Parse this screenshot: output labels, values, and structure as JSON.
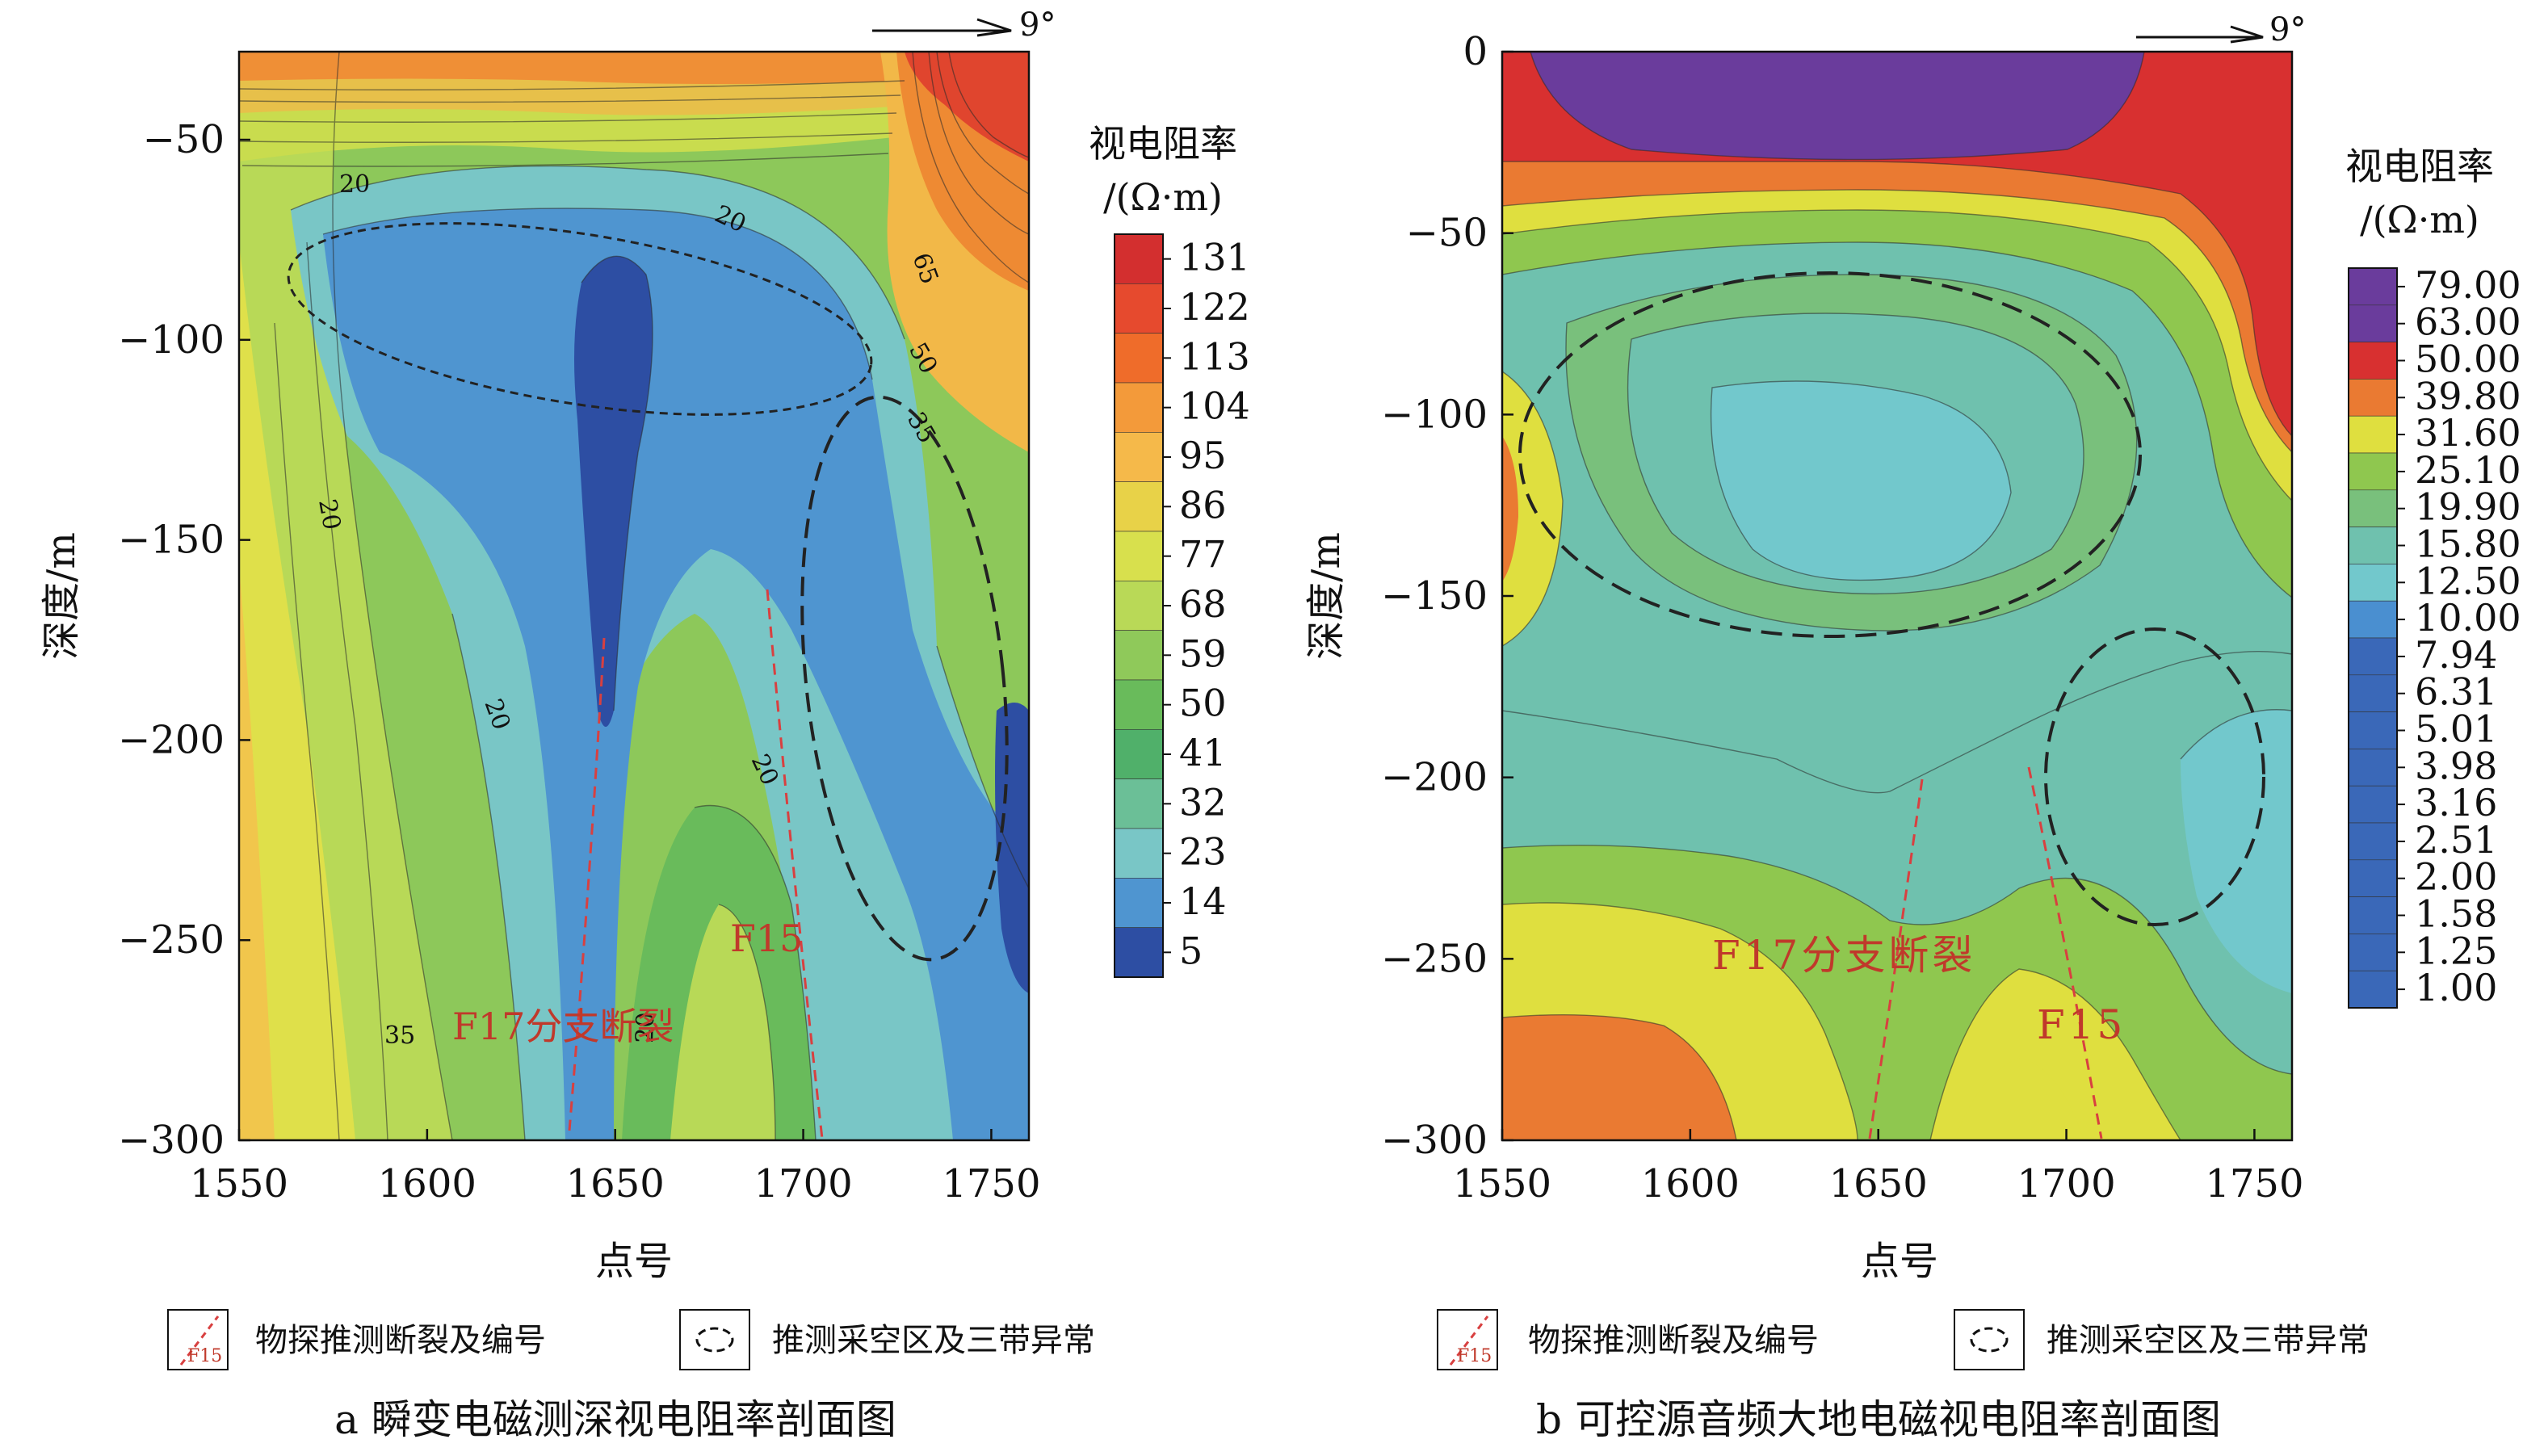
{
  "chart_data": [
    {
      "id": "a",
      "type": "contour",
      "caption": "a 瞬变电磁测深视电阻率剖面图",
      "xlabel": "点号",
      "ylabel": "深度/m",
      "xlim": [
        1550,
        1760
      ],
      "ylim": [
        -300,
        -28
      ],
      "x_ticks": [
        "1550",
        "1600",
        "1650",
        "1700",
        "1750"
      ],
      "y_ticks": [
        "−50",
        "−100",
        "−150",
        "−200",
        "−250",
        "−300"
      ],
      "y_tick_values": [
        -50,
        -100,
        -150,
        -200,
        -250,
        -300
      ],
      "x_tick_values": [
        1550,
        1600,
        1650,
        1700,
        1750
      ],
      "colorbar": {
        "title_line1": "视电阻率",
        "title_line2": "/(Ω·m)",
        "labels": [
          "131",
          "122",
          "113",
          "104",
          "95",
          "86",
          "77",
          "68",
          "59",
          "50",
          "41",
          "32",
          "23",
          "14",
          "5"
        ],
        "colors": [
          "#d32f2f",
          "#e64a2e",
          "#ef6c2a",
          "#f39a3a",
          "#f5b94a",
          "#e8d248",
          "#d8e04d",
          "#b9d957",
          "#8fc95a",
          "#69bb5b",
          "#50b06a",
          "#6bbf97",
          "#79c6c6",
          "#4f95d0",
          "#2d4ea3"
        ]
      },
      "contour_labels": [
        "20",
        "20",
        "20",
        "20",
        "20",
        "20",
        "35",
        "50",
        "65",
        "35",
        "20"
      ],
      "direction": "9°",
      "fault_labels": [
        "F17分支断裂",
        "F15"
      ]
    },
    {
      "id": "b",
      "type": "contour",
      "caption": "b 可控源音频大地电磁视电阻率剖面图",
      "xlabel": "点号",
      "ylabel": "深度/m",
      "xlim": [
        1550,
        1760
      ],
      "ylim": [
        -300,
        0
      ],
      "x_ticks": [
        "1550",
        "1600",
        "1650",
        "1700",
        "1750"
      ],
      "y_ticks": [
        "0",
        "−50",
        "−100",
        "−150",
        "−200",
        "−250",
        "−300"
      ],
      "y_tick_values": [
        0,
        -50,
        -100,
        -150,
        -200,
        -250,
        -300
      ],
      "x_tick_values": [
        1550,
        1600,
        1650,
        1700,
        1750
      ],
      "colorbar": {
        "title_line1": "视电阻率",
        "title_line2": "/(Ω·m)",
        "labels": [
          "79.00",
          "63.00",
          "50.00",
          "39.80",
          "31.60",
          "25.10",
          "19.90",
          "15.80",
          "12.50",
          "10.00",
          "7.94",
          "6.31",
          "5.01",
          "3.98",
          "3.16",
          "2.51",
          "2.00",
          "1.58",
          "1.25",
          "1.00"
        ],
        "colors": [
          "#6a3c9c",
          "#6a3c9c",
          "#d83030",
          "#ea7a32",
          "#dfdf3f",
          "#8fc74f",
          "#79c07c",
          "#6fc1ae",
          "#72c8cc",
          "#4a8fd0",
          "#3a68b8",
          "#3a68b8",
          "#3a68b8",
          "#3a68b8",
          "#3a68b8",
          "#3a68b8",
          "#3a68b8",
          "#3a68b8",
          "#3a68b8",
          "#3a68b8"
        ]
      },
      "direction": "9°",
      "fault_labels": [
        "F17分支断裂",
        "F15"
      ]
    }
  ],
  "legend": {
    "fault_label": "物探推测断裂及编号",
    "fault_icon_text": "F15",
    "goaf_label": "推测采空区及三带异常"
  }
}
